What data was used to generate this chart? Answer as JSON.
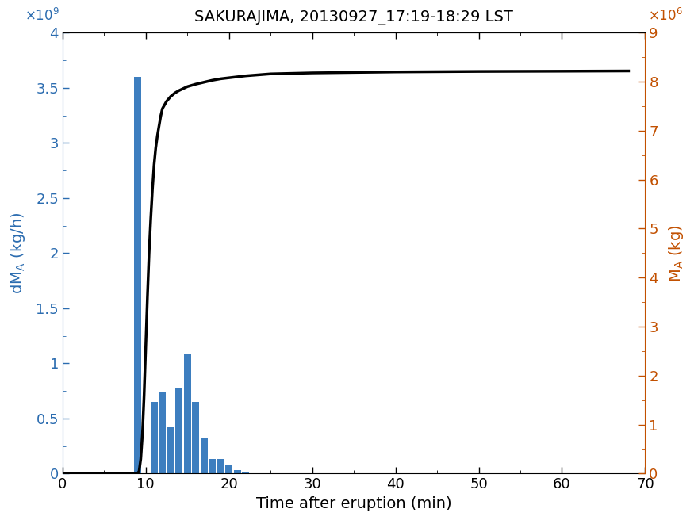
{
  "title": "SAKURAJIMA, 20130927_17:19-18:29 LST",
  "xlabel": "Time after eruption (min)",
  "ylabel_left": "dM_A (kg/h)",
  "ylabel_right": "M_A (kg)",
  "bar_color": "#3d7ebf",
  "line_color": "#000000",
  "left_axis_color": "#2b6cb0",
  "right_axis_color": "#c25000",
  "xlim": [
    0,
    70
  ],
  "ylim_left": [
    0,
    4000000000.0
  ],
  "ylim_right": [
    0,
    9000000.0
  ],
  "bar_centers": [
    9,
    11,
    12,
    13,
    14,
    15,
    16,
    17,
    18,
    19,
    20,
    21,
    22,
    23,
    24,
    25
  ],
  "bar_heights": [
    3600000000.0,
    650000000.0,
    740000000.0,
    420000000.0,
    780000000.0,
    1080000000.0,
    650000000.0,
    320000000.0,
    130000000.0,
    130000000.0,
    80000000.0,
    30000000.0,
    10000000.0,
    5000000.0,
    2000000.0,
    1000000.0
  ],
  "bar_width": 0.85,
  "cumulative_x": [
    0,
    8.0,
    8.5,
    9.0,
    9.2,
    9.4,
    9.6,
    9.8,
    10.0,
    10.2,
    10.4,
    10.6,
    10.8,
    11.0,
    11.2,
    11.4,
    11.6,
    11.8,
    12.0,
    12.5,
    13.0,
    13.5,
    14.0,
    14.5,
    15.0,
    16.0,
    17.0,
    18.0,
    19.0,
    20.0,
    22.0,
    25.0,
    30.0,
    40.0,
    50.0,
    60.0,
    68.0
  ],
  "cumulative_y": [
    0,
    0,
    0,
    0.0,
    50000.0,
    300000.0,
    800000.0,
    1600000.0,
    2600000.0,
    3600000.0,
    4500000.0,
    5200000.0,
    5800000.0,
    6300000.0,
    6650000.0,
    6900000.0,
    7100000.0,
    7300000.0,
    7450000.0,
    7600000.0,
    7700000.0,
    7770000.0,
    7820000.0,
    7860000.0,
    7900000.0,
    7950000.0,
    7990000.0,
    8030000.0,
    8060000.0,
    8080000.0,
    8120000.0,
    8160000.0,
    8180000.0,
    8200000.0,
    8210000.0,
    8215000.0,
    8220000.0
  ],
  "xticks": [
    0,
    10,
    20,
    30,
    40,
    50,
    60,
    70
  ],
  "yticks_left": [
    0,
    500000000.0,
    1000000000.0,
    1500000000.0,
    2000000000.0,
    2500000000.0,
    3000000000.0,
    3500000000.0,
    4000000000.0
  ],
  "yticks_right": [
    0,
    1000000.0,
    2000000.0,
    3000000.0,
    4000000.0,
    5000000.0,
    6000000.0,
    7000000.0,
    8000000.0,
    9000000.0
  ],
  "ytick_labels_left": [
    "0",
    "0.5",
    "1",
    "1.5",
    "2",
    "2.5",
    "3",
    "3.5",
    "4"
  ],
  "ytick_labels_right": [
    "0",
    "1",
    "2",
    "3",
    "4",
    "5",
    "6",
    "7",
    "8",
    "9"
  ],
  "title_fontsize": 14,
  "label_fontsize": 14,
  "tick_fontsize": 13
}
